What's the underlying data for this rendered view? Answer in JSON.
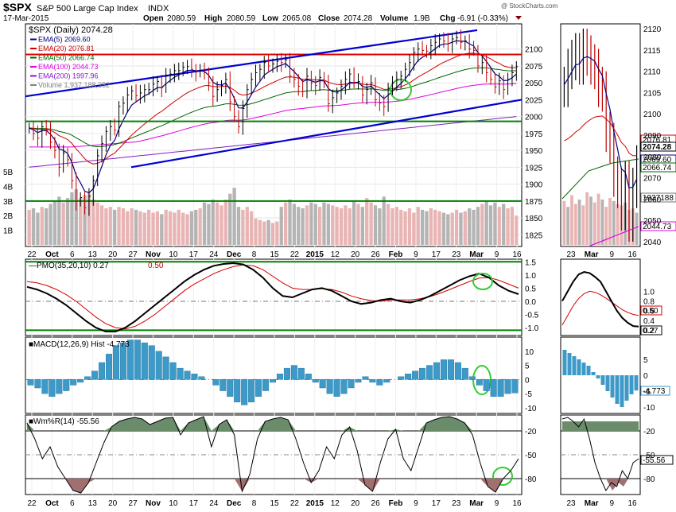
{
  "header": {
    "symbol": "$SPX",
    "name": "S&P 500 Large Cap Index",
    "exchange": "INDX",
    "date": "17-Mar-2015",
    "open_label": "Open",
    "open": "2080.59",
    "high_label": "High",
    "high": "2080.59",
    "low_label": "Low",
    "low": "2065.08",
    "close_label": "Close",
    "close": "2074.28",
    "volume_label": "Volume",
    "volume": "1.9B",
    "chg_label": "Chg",
    "chg": "-6.91 (-0.33%)",
    "watermark": "@ StockCharts.com"
  },
  "colors": {
    "price": "#000000",
    "ema5": "#000080",
    "ema20": "#d00000",
    "ema50": "#006400",
    "ema100": "#e000e0",
    "ema200": "#8020c0",
    "trend_blue": "#0000d0",
    "hline_red": "#e00000",
    "hline_green": "#008000",
    "vol_up": "#e8b4b4",
    "vol_down": "#b4b4b4",
    "macd_hist": "#3d9ac8",
    "wm_fill": "#6b8c6b",
    "wm_low_fill": "#a07070",
    "circle": "#33cc33"
  },
  "chart_data": [
    {
      "type": "line",
      "id": "price",
      "legend": [
        {
          "name": "$SPX (Daily)",
          "value": "2074.28"
        },
        {
          "name": "EMA(5)",
          "value": "2069.60"
        },
        {
          "name": "EMA(20)",
          "value": "2076.81"
        },
        {
          "name": "EMA(50)",
          "value": "2066.74"
        },
        {
          "name": "EMA(100)",
          "value": "2044.73"
        },
        {
          "name": "EMA(200)",
          "value": "1997.96"
        },
        {
          "name": "Volume",
          "value": "1,937,188,352"
        }
      ],
      "ylim": [
        1810,
        2135
      ],
      "yticks": [
        1825,
        1850,
        1875,
        1900,
        1925,
        1950,
        1975,
        2000,
        2025,
        2050,
        2075,
        2100
      ],
      "hlines": [
        {
          "y": 2092,
          "color": "red"
        },
        {
          "y": 1993,
          "color": "green"
        }
      ],
      "vol_ticks": [
        "1B",
        "2B",
        "3B",
        "4B",
        "5B"
      ],
      "vol_hline": "3B",
      "x_labels": [
        "22",
        "Oct",
        "6",
        "13",
        "20",
        "27",
        "Nov",
        "10",
        "17",
        "24",
        "Dec",
        "8",
        "15",
        "22",
        "2015",
        "12",
        "20",
        "26",
        "Feb",
        "9",
        "17",
        "23",
        "Mar",
        "9",
        "16"
      ],
      "close": [
        1983,
        1975,
        1968,
        1985,
        1980,
        1962,
        1950,
        1925,
        1946,
        1936,
        1905,
        1875,
        1880,
        1865,
        1882,
        1905,
        1942,
        1960,
        1978,
        1985,
        1980,
        2015,
        2020,
        2032,
        2038,
        2031,
        2035,
        2040,
        2040,
        2048,
        2052,
        2043,
        2060,
        2063,
        2068,
        2068,
        2073,
        2074,
        2070,
        2066,
        2068,
        2065,
        2050,
        2030,
        2040,
        2046,
        2055,
        2022,
        2000,
        1985,
        2012,
        2040,
        2055,
        2065,
        2070,
        2080,
        2075,
        2078,
        2082,
        2080,
        2084,
        2060,
        2055,
        2045,
        2037,
        2060,
        2050,
        2046,
        2058,
        2052,
        2019,
        2028,
        2035,
        2045,
        2055,
        2063,
        2050,
        2052,
        2032,
        2040,
        2050,
        2025,
        2020,
        2015,
        2042,
        2050,
        2055,
        2060,
        2070,
        2080,
        2095,
        2100,
        2098,
        2097,
        2105,
        2110,
        2115,
        2112,
        2108,
        2115,
        2117,
        2110,
        2112,
        2100,
        2098,
        2075,
        2080,
        2065,
        2055,
        2044,
        2053,
        2040,
        2055,
        2065,
        2074
      ],
      "volume": [
        2.4,
        2.5,
        2.2,
        2.6,
        2.5,
        2.8,
        3.0,
        3.3,
        2.9,
        3.2,
        3.6,
        3.8,
        3.2,
        3.4,
        3.5,
        3.1,
        2.9,
        2.7,
        2.5,
        2.6,
        2.4,
        2.6,
        2.5,
        2.3,
        2.5,
        2.4,
        2.3,
        2.2,
        2.4,
        2.2,
        2.3,
        2.1,
        2.4,
        2.3,
        2.2,
        2.4,
        2.2,
        2.1,
        2.3,
        2.4,
        2.5,
        2.9,
        2.8,
        3.1,
        2.9,
        2.7,
        3.1,
        3.5,
        3.9,
        2.6,
        2.4,
        2.6,
        2.3,
        1.8,
        1.7,
        1.6,
        1.7,
        1.5,
        1.6,
        2.6,
        2.9,
        3.1,
        2.8,
        2.6,
        2.5,
        2.7,
        2.9,
        2.8,
        2.6,
        2.9,
        2.8,
        2.7,
        2.6,
        2.5,
        2.7,
        2.5,
        3.0,
        2.8,
        2.6,
        3.2,
        2.9,
        2.7,
        2.5,
        3.3,
        2.8,
        2.5,
        2.6,
        2.4,
        2.3,
        2.5,
        2.2,
        2.6,
        2.4,
        2.3,
        2.5,
        2.4,
        2.3,
        2.2,
        2.1,
        2.2,
        2.4,
        2.2,
        2.3,
        2.5,
        2.4,
        2.6,
        2.8,
        3.0,
        2.7,
        2.9,
        2.6,
        2.8,
        2.5,
        2.6,
        2.0
      ]
    },
    {
      "type": "line",
      "id": "pmo",
      "legend": [
        {
          "name": "PMO(35,20,10)",
          "value": "0.27"
        },
        {
          "name": "",
          "value": "0.50"
        }
      ],
      "ylim": [
        -1.3,
        1.6
      ],
      "yticks": [
        -1.0,
        -0.5,
        0.0,
        0.5,
        1.0,
        1.5
      ],
      "hlines": [
        1.5,
        -1.1
      ],
      "pmo": [
        0.55,
        0.45,
        0.3,
        0.1,
        -0.15,
        -0.45,
        -0.75,
        -1.0,
        -1.15,
        -1.15,
        -1.0,
        -0.75,
        -0.45,
        -0.15,
        0.15,
        0.45,
        0.75,
        1.0,
        1.2,
        1.35,
        1.42,
        1.45,
        1.4,
        1.2,
        0.9,
        0.5,
        0.2,
        0.15,
        0.3,
        0.45,
        0.5,
        0.4,
        0.2,
        0.0,
        -0.1,
        -0.05,
        0.05,
        0.1,
        0.0,
        -0.05,
        0.05,
        0.2,
        0.4,
        0.6,
        0.8,
        0.95,
        1.05,
        0.9,
        0.6,
        0.4,
        0.27
      ],
      "signal": [
        0.75,
        0.7,
        0.6,
        0.45,
        0.25,
        0.0,
        -0.3,
        -0.6,
        -0.85,
        -1.0,
        -1.05,
        -0.95,
        -0.75,
        -0.5,
        -0.2,
        0.1,
        0.4,
        0.65,
        0.85,
        1.05,
        1.2,
        1.32,
        1.38,
        1.35,
        1.2,
        0.95,
        0.7,
        0.5,
        0.45,
        0.45,
        0.48,
        0.45,
        0.35,
        0.2,
        0.1,
        0.03,
        0.0,
        0.05,
        0.05,
        0.05,
        0.1,
        0.18,
        0.3,
        0.45,
        0.6,
        0.75,
        0.88,
        0.9,
        0.8,
        0.65,
        0.5
      ]
    },
    {
      "type": "bar",
      "id": "macd",
      "legend": [
        {
          "name": "MACD(12,26,9)",
          "value": "Hist -4.773"
        }
      ],
      "ylim": [
        -12,
        15
      ],
      "yticks": [
        -10,
        -5,
        0,
        5,
        10
      ],
      "hist": [
        -2,
        -3,
        -5,
        -6,
        -5,
        -4,
        -2,
        -1,
        1,
        3,
        6,
        9,
        12,
        13,
        14,
        14,
        13,
        12,
        10,
        8,
        6,
        4,
        3,
        2,
        1,
        0,
        -2,
        -4,
        -6,
        -8,
        -9,
        -8,
        -6,
        -4,
        -1,
        2,
        4,
        5,
        4,
        2,
        -1,
        -3,
        -5,
        -6,
        -5,
        -3,
        -1,
        1,
        -1,
        -2,
        -1,
        0,
        1,
        2,
        3,
        4,
        5,
        6,
        7,
        7,
        6,
        4,
        1,
        -2,
        -4,
        -6,
        -6,
        -5,
        -4.77
      ]
    },
    {
      "type": "area",
      "id": "wmr",
      "legend": [
        {
          "name": "Wm%R(14)",
          "value": "-55.56"
        }
      ],
      "ylim": [
        -100,
        0
      ],
      "yticks": [
        -20,
        -50,
        -80
      ],
      "wmr": [
        -10,
        -30,
        -55,
        -40,
        -65,
        -80,
        -95,
        -98,
        -85,
        -60,
        -35,
        -15,
        -8,
        -5,
        -3,
        -5,
        -12,
        -8,
        -4,
        -3,
        -25,
        -10,
        -6,
        -2,
        -40,
        -12,
        -6,
        -25,
        -96,
        -75,
        -30,
        -8,
        -5,
        -3,
        -6,
        -30,
        -60,
        -85,
        -70,
        -40,
        -55,
        -25,
        -15,
        -45,
        -88,
        -96,
        -60,
        -30,
        -18,
        -55,
        -70,
        -40,
        -10,
        -6,
        -3,
        -2,
        -5,
        -10,
        -25,
        -60,
        -90,
        -97,
        -80,
        -70,
        -55
      ]
    },
    {
      "type": "line",
      "id": "inset",
      "x_labels": [
        "23",
        "Mar",
        "9",
        "16"
      ],
      "price_yticks": [
        2040,
        2050,
        2060,
        2070,
        2080,
        2090,
        2100,
        2105,
        2110,
        2115,
        2120
      ],
      "price_labels": [
        "2076.81",
        "2074.28",
        "2069.60",
        "2066.74",
        "1937188",
        "2044.73"
      ],
      "pmo_yticks": [
        "1.0",
        "0.8",
        "0.6",
        "0.4",
        "0.2"
      ],
      "pmo_labels": [
        "0.50",
        "0.27"
      ],
      "macd_yticks": [
        "5",
        "0",
        "-5",
        "-10"
      ],
      "macd_label": "-4.773",
      "wm_yticks": [
        "-20",
        "-50",
        "-80"
      ],
      "wm_label": "-55.56"
    }
  ]
}
